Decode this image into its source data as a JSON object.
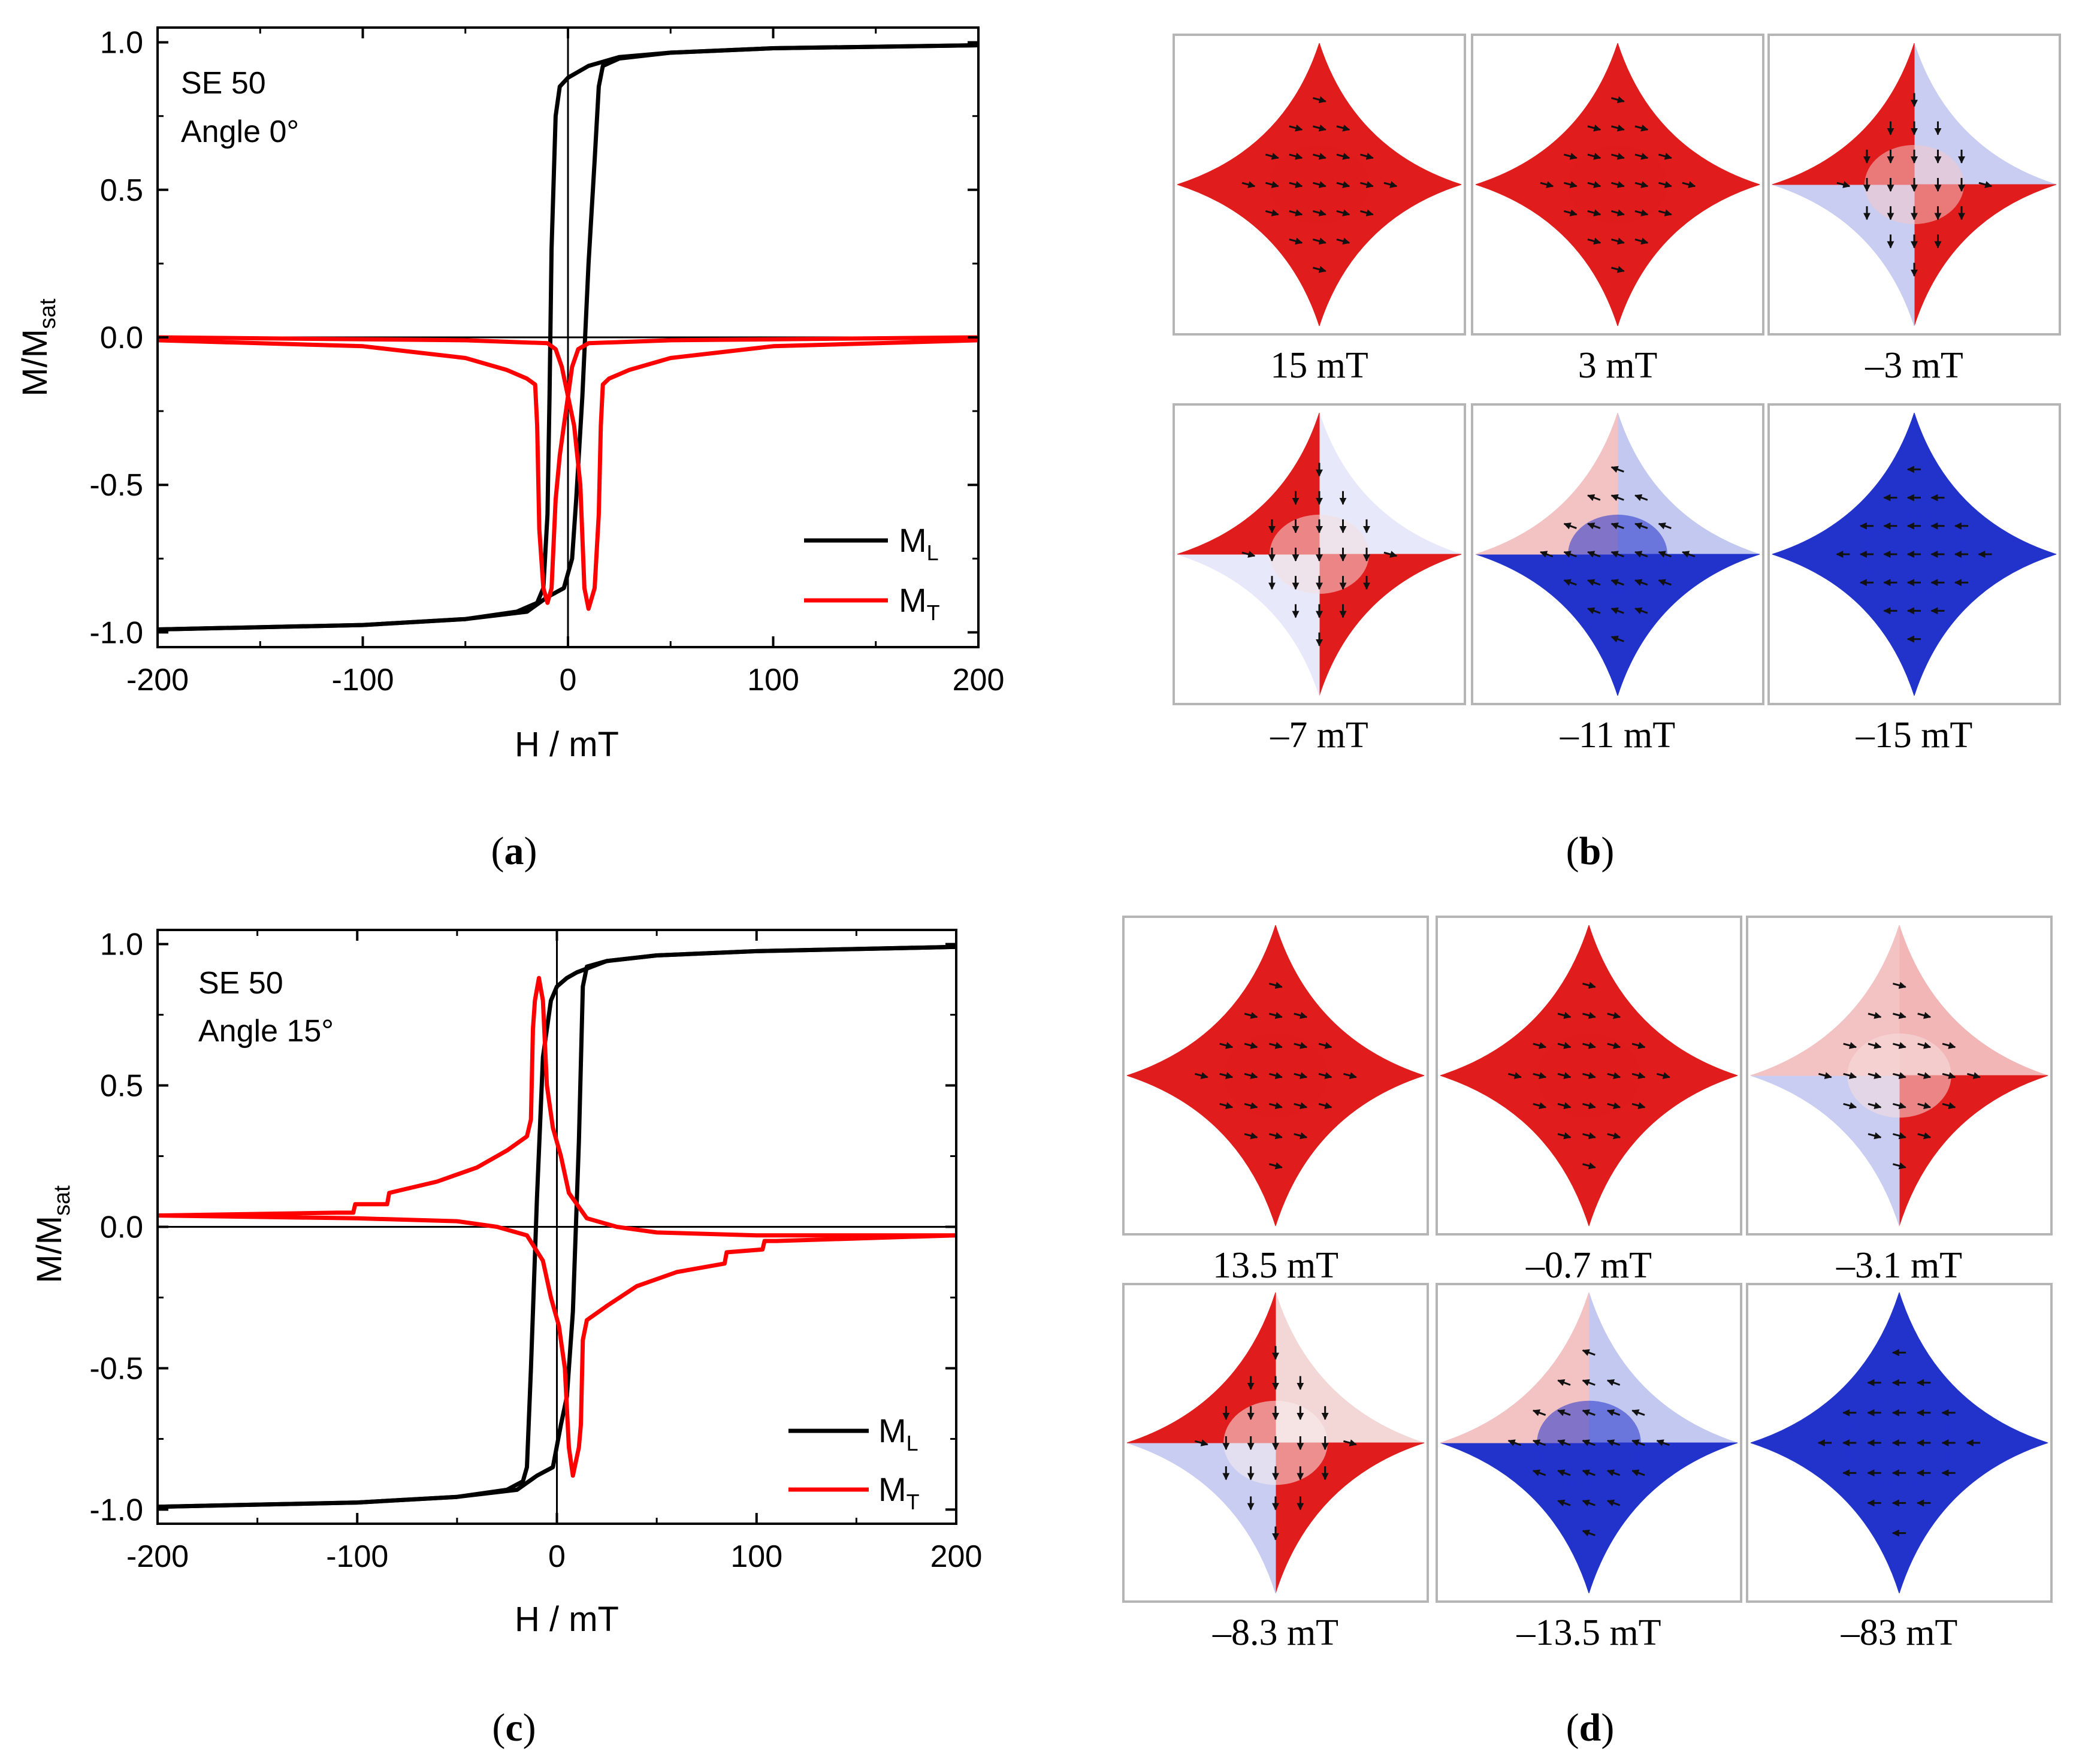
{
  "colors": {
    "ml": "#000000",
    "mt": "#ff0000",
    "red": "#e01c1c",
    "blue": "#2233cc"
  },
  "chart_data": [
    {
      "type": "line",
      "panel": "(a)",
      "panel_letter": "a",
      "annotation": [
        "SE 50",
        "Angle 0°"
      ],
      "xlabel": "H / mT",
      "ylabel": "M/M",
      "ylabel_sub": "sat",
      "xlim": [
        -200,
        200
      ],
      "ylim": [
        -1.05,
        1.05
      ],
      "xticks": [
        -200,
        -100,
        0,
        100,
        200
      ],
      "xtick_labels": [
        "-200",
        "-100",
        "0",
        "100",
        "200"
      ],
      "yticks": [
        1.0,
        0.5,
        0.0,
        -0.5,
        -1.0
      ],
      "ytick_labels": [
        "1.0",
        "0.5",
        "0.0",
        "-0.5",
        "-1.0"
      ],
      "legend": [
        {
          "name": "M",
          "sub": "L",
          "color": "#000000"
        },
        {
          "name": "M",
          "sub": "T",
          "color": "#ff0000"
        }
      ],
      "series": [
        {
          "name": "ML",
          "color": "#000000",
          "points": [
            [
              -200,
              -0.99
            ],
            [
              -100,
              -0.975
            ],
            [
              -50,
              -0.955
            ],
            [
              -25,
              -0.93
            ],
            [
              -15,
              -0.9
            ],
            [
              -12,
              -0.85
            ],
            [
              -10,
              -0.6
            ],
            [
              -9,
              -0.2
            ],
            [
              -8,
              0.3
            ],
            [
              -6,
              0.75
            ],
            [
              -4,
              0.85
            ],
            [
              0,
              0.88
            ],
            [
              5,
              0.9
            ],
            [
              10,
              0.92
            ],
            [
              25,
              0.95
            ],
            [
              50,
              0.965
            ],
            [
              100,
              0.98
            ],
            [
              200,
              0.99
            ]
          ]
        },
        {
          "name": "ML",
          "color": "#000000",
          "points": [
            [
              200,
              0.99
            ],
            [
              100,
              0.98
            ],
            [
              50,
              0.965
            ],
            [
              25,
              0.945
            ],
            [
              17,
              0.92
            ],
            [
              15,
              0.85
            ],
            [
              13,
              0.6
            ],
            [
              10,
              0.25
            ],
            [
              7,
              -0.2
            ],
            [
              4,
              -0.55
            ],
            [
              2,
              -0.75
            ],
            [
              -2,
              -0.85
            ],
            [
              -10,
              -0.88
            ],
            [
              -14,
              -0.9
            ],
            [
              -20,
              -0.93
            ],
            [
              -50,
              -0.955
            ],
            [
              -100,
              -0.975
            ],
            [
              -200,
              -0.99
            ]
          ]
        },
        {
          "name": "MT",
          "color": "#ff0000",
          "points": [
            [
              -200,
              -0.01
            ],
            [
              -100,
              -0.03
            ],
            [
              -50,
              -0.07
            ],
            [
              -30,
              -0.11
            ],
            [
              -20,
              -0.14
            ],
            [
              -16,
              -0.16
            ],
            [
              -15,
              -0.3
            ],
            [
              -14,
              -0.65
            ],
            [
              -12,
              -0.85
            ],
            [
              -10,
              -0.9
            ],
            [
              -8,
              -0.85
            ],
            [
              -6,
              -0.55
            ],
            [
              -4,
              -0.4
            ],
            [
              -2,
              -0.3
            ],
            [
              0,
              -0.2
            ],
            [
              2,
              -0.1
            ],
            [
              5,
              -0.04
            ],
            [
              10,
              -0.02
            ],
            [
              50,
              -0.01
            ],
            [
              200,
              0.0
            ]
          ]
        },
        {
          "name": "MT",
          "color": "#ff0000",
          "points": [
            [
              200,
              -0.01
            ],
            [
              100,
              -0.03
            ],
            [
              50,
              -0.07
            ],
            [
              30,
              -0.11
            ],
            [
              20,
              -0.14
            ],
            [
              17,
              -0.16
            ],
            [
              16,
              -0.3
            ],
            [
              15,
              -0.6
            ],
            [
              13,
              -0.85
            ],
            [
              10,
              -0.92
            ],
            [
              8,
              -0.85
            ],
            [
              6,
              -0.5
            ],
            [
              3,
              -0.3
            ],
            [
              0,
              -0.2
            ],
            [
              -3,
              -0.1
            ],
            [
              -6,
              -0.04
            ],
            [
              -10,
              -0.02
            ],
            [
              -50,
              -0.01
            ],
            [
              -200,
              0.0
            ]
          ]
        }
      ]
    },
    {
      "type": "line",
      "panel": "(c)",
      "panel_letter": "c",
      "annotation": [
        "SE 50",
        "Angle 15°"
      ],
      "xlabel": "H / mT",
      "ylabel": "M/M",
      "ylabel_sub": "sat",
      "xlim": [
        -200,
        200
      ],
      "ylim": [
        -1.05,
        1.05
      ],
      "xticks": [
        -200,
        -100,
        0,
        100,
        200
      ],
      "xtick_labels": [
        "-200",
        "-100",
        "0",
        "100",
        "200"
      ],
      "yticks": [
        1.0,
        0.5,
        0.0,
        -0.5,
        -1.0
      ],
      "ytick_labels": [
        "1.0",
        "0.5",
        "0.0",
        "-0.5",
        "-1.0"
      ],
      "legend": [
        {
          "name": "M",
          "sub": "L",
          "color": "#000000"
        },
        {
          "name": "M",
          "sub": "T",
          "color": "#ff0000"
        }
      ],
      "series": [
        {
          "name": "ML",
          "color": "#000000",
          "points": [
            [
              -200,
              -0.99
            ],
            [
              -100,
              -0.975
            ],
            [
              -50,
              -0.955
            ],
            [
              -25,
              -0.93
            ],
            [
              -17,
              -0.9
            ],
            [
              -15,
              -0.85
            ],
            [
              -13,
              -0.5
            ],
            [
              -10,
              0.1
            ],
            [
              -7,
              0.6
            ],
            [
              -3,
              0.8
            ],
            [
              0,
              0.85
            ],
            [
              5,
              0.88
            ],
            [
              10,
              0.9
            ],
            [
              25,
              0.94
            ],
            [
              50,
              0.96
            ],
            [
              100,
              0.975
            ],
            [
              200,
              0.99
            ]
          ]
        },
        {
          "name": "ML",
          "color": "#000000",
          "points": [
            [
              200,
              0.99
            ],
            [
              100,
              0.975
            ],
            [
              50,
              0.96
            ],
            [
              25,
              0.94
            ],
            [
              15,
              0.92
            ],
            [
              13,
              0.85
            ],
            [
              11,
              0.3
            ],
            [
              8,
              -0.3
            ],
            [
              5,
              -0.6
            ],
            [
              2,
              -0.7
            ],
            [
              -2,
              -0.85
            ],
            [
              -10,
              -0.88
            ],
            [
              -20,
              -0.93
            ],
            [
              -50,
              -0.955
            ],
            [
              -100,
              -0.975
            ],
            [
              -200,
              -0.99
            ]
          ]
        },
        {
          "name": "MT",
          "color": "#ff0000",
          "points": [
            [
              -200,
              0.04
            ],
            [
              -110,
              0.05
            ],
            [
              -102,
              0.05
            ],
            [
              -101,
              0.08
            ],
            [
              -85,
              0.08
            ],
            [
              -84,
              0.12
            ],
            [
              -60,
              0.16
            ],
            [
              -40,
              0.21
            ],
            [
              -25,
              0.27
            ],
            [
              -15,
              0.32
            ],
            [
              -13,
              0.38
            ],
            [
              -12,
              0.7
            ],
            [
              -11,
              0.8
            ],
            [
              -9,
              0.88
            ],
            [
              -7,
              0.8
            ],
            [
              -5,
              0.5
            ],
            [
              -2,
              0.35
            ],
            [
              2,
              0.25
            ],
            [
              6,
              0.12
            ],
            [
              15,
              0.03
            ],
            [
              30,
              0.0
            ],
            [
              50,
              -0.02
            ],
            [
              100,
              -0.03
            ],
            [
              200,
              -0.03
            ]
          ]
        },
        {
          "name": "MT",
          "color": "#ff0000",
          "points": [
            [
              200,
              -0.03
            ],
            [
              110,
              -0.05
            ],
            [
              104,
              -0.05
            ],
            [
              103,
              -0.08
            ],
            [
              85,
              -0.09
            ],
            [
              84,
              -0.13
            ],
            [
              60,
              -0.16
            ],
            [
              40,
              -0.21
            ],
            [
              25,
              -0.28
            ],
            [
              15,
              -0.33
            ],
            [
              13,
              -0.4
            ],
            [
              12,
              -0.7
            ],
            [
              11,
              -0.78
            ],
            [
              8,
              -0.88
            ],
            [
              6,
              -0.78
            ],
            [
              4,
              -0.5
            ],
            [
              1,
              -0.35
            ],
            [
              -3,
              -0.25
            ],
            [
              -7,
              -0.12
            ],
            [
              -15,
              -0.03
            ],
            [
              -30,
              0.0
            ],
            [
              -50,
              0.02
            ],
            [
              -100,
              0.03
            ],
            [
              -200,
              0.04
            ]
          ]
        }
      ]
    }
  ],
  "panel_b": {
    "letter": "b",
    "label": "(b)",
    "fields": [
      "15 mT",
      "3 mT",
      "–3 mT",
      "–7 mT",
      "–11 mT",
      "–15 mT"
    ],
    "states": [
      "red",
      "red",
      "tb-red",
      "ew-red",
      "tl-red",
      "blue"
    ]
  },
  "panel_d": {
    "letter": "d",
    "label": "(d)",
    "fields": [
      "13.5 mT",
      "–0.7 mT",
      "–3.1 mT",
      "–8.3 mT",
      "–13.5 mT",
      "–83 mT"
    ],
    "states": [
      "red",
      "red",
      "bl-blue",
      "q-mix",
      "tl-red",
      "blue"
    ]
  }
}
